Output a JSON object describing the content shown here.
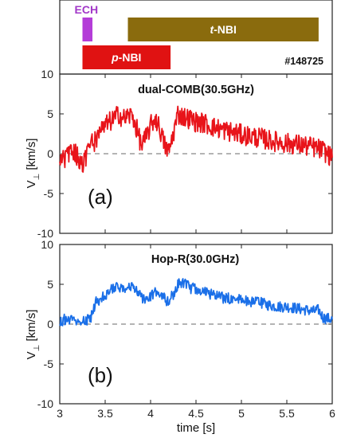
{
  "chart_data": [
    {
      "type": "timeline",
      "shot_label": "#148725",
      "bars": [
        {
          "prefix": "",
          "name": "ECH",
          "start": 3.25,
          "end": 3.36,
          "color": "#b43dd8",
          "text_color": "#a238c8"
        },
        {
          "prefix": "t",
          "name": "-NBI",
          "start": 3.75,
          "end": 5.85,
          "color": "#8a6b0d",
          "text_color": "#ffffff"
        },
        {
          "prefix": "p",
          "name": "-NBI",
          "start": 3.25,
          "end": 4.22,
          "color": "#e01212",
          "text_color": "#ffffff"
        }
      ]
    },
    {
      "type": "line",
      "panel_label": "(a)",
      "title": "dual-COMB(30.5GHz)",
      "ylabel": "V⊥ [km/s]",
      "ylabel_main": "V",
      "ylabel_sub": "⊥",
      "ylabel_unit": "[km/s]",
      "xlim": [
        3,
        6
      ],
      "ylim": [
        -10,
        10
      ],
      "yticks": [
        "10",
        "5",
        "0",
        "-5",
        "-10"
      ],
      "grid": false,
      "zero_line": true,
      "series": [
        {
          "color": "#e8141a",
          "x": [
            3.0,
            3.05,
            3.1,
            3.15,
            3.2,
            3.25,
            3.3,
            3.35,
            3.4,
            3.45,
            3.5,
            3.55,
            3.6,
            3.65,
            3.7,
            3.75,
            3.8,
            3.85,
            3.9,
            3.95,
            4.0,
            4.05,
            4.1,
            4.15,
            4.2,
            4.25,
            4.3,
            4.35,
            4.4,
            4.45,
            4.5,
            4.6,
            4.7,
            4.8,
            4.9,
            5.0,
            5.1,
            5.2,
            5.3,
            5.4,
            5.5,
            5.6,
            5.7,
            5.8,
            5.9,
            6.0
          ],
          "y": [
            -1.0,
            -0.6,
            0.2,
            0.5,
            -0.5,
            -1.2,
            0.0,
            1.5,
            1.6,
            2.5,
            3.5,
            4.0,
            4.4,
            5.0,
            4.4,
            4.7,
            4.8,
            3.0,
            1.0,
            2.0,
            3.5,
            4.5,
            3.2,
            1.2,
            0.2,
            2.5,
            5.0,
            4.7,
            4.5,
            4.3,
            4.0,
            3.8,
            3.3,
            3.0,
            2.7,
            2.4,
            2.2,
            2.0,
            1.7,
            1.5,
            1.3,
            1.2,
            1.0,
            0.8,
            0.4,
            -0.5
          ]
        }
      ]
    },
    {
      "type": "line",
      "panel_label": "(b)",
      "title": "Hop-R(30.0GHz)",
      "ylabel": "V⊥ [km/s]",
      "ylabel_main": "V",
      "ylabel_sub": "⊥",
      "ylabel_unit": "[km/s]",
      "xlabel": "time [s]",
      "xlim": [
        3,
        6
      ],
      "ylim": [
        -10,
        10
      ],
      "xticks": [
        "3",
        "3.5",
        "4",
        "4.5",
        "5",
        "5.5",
        "6"
      ],
      "yticks": [
        "10",
        "5",
        "0",
        "-5",
        "-10"
      ],
      "grid": false,
      "zero_line": true,
      "series": [
        {
          "color": "#1a6fe8",
          "x": [
            3.0,
            3.05,
            3.1,
            3.15,
            3.2,
            3.25,
            3.3,
            3.35,
            3.4,
            3.45,
            3.5,
            3.55,
            3.6,
            3.65,
            3.7,
            3.75,
            3.8,
            3.85,
            3.9,
            3.95,
            4.0,
            4.05,
            4.1,
            4.15,
            4.2,
            4.25,
            4.3,
            4.35,
            4.4,
            4.45,
            4.5,
            4.6,
            4.7,
            4.8,
            4.9,
            5.0,
            5.1,
            5.2,
            5.3,
            5.4,
            5.5,
            5.6,
            5.7,
            5.8,
            5.85,
            5.9,
            6.0
          ],
          "y": [
            0.3,
            0.6,
            0.5,
            0.4,
            0.6,
            0.2,
            0.4,
            1.0,
            2.8,
            3.2,
            3.6,
            4.2,
            4.5,
            4.6,
            4.5,
            4.7,
            4.6,
            4.3,
            3.2,
            3.0,
            3.5,
            4.0,
            3.8,
            3.2,
            2.8,
            3.8,
            5.0,
            5.2,
            4.8,
            4.5,
            4.4,
            4.0,
            3.6,
            3.3,
            3.2,
            3.0,
            2.9,
            2.7,
            2.4,
            2.2,
            2.2,
            2.0,
            1.8,
            1.6,
            1.8,
            0.8,
            0.6
          ]
        }
      ]
    }
  ]
}
